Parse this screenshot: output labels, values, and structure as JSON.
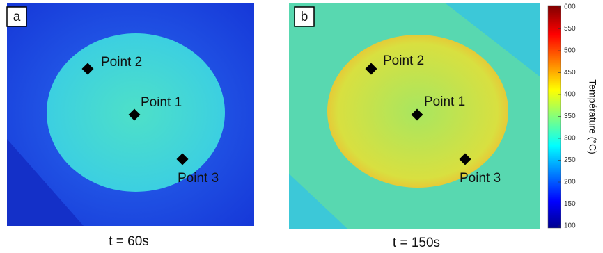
{
  "panels": [
    {
      "label": "a",
      "caption": "t = 60s",
      "points": [
        "Point 2",
        "Point 1",
        "Point 3"
      ]
    },
    {
      "label": "b",
      "caption": "t = 150s",
      "points": [
        "Point 2",
        "Point 1",
        "Point 3"
      ]
    }
  ],
  "colorbar": {
    "label": "Température (°C)",
    "ticks": [
      100,
      150,
      200,
      250,
      300,
      350,
      400,
      450,
      500,
      550,
      600
    ]
  }
}
